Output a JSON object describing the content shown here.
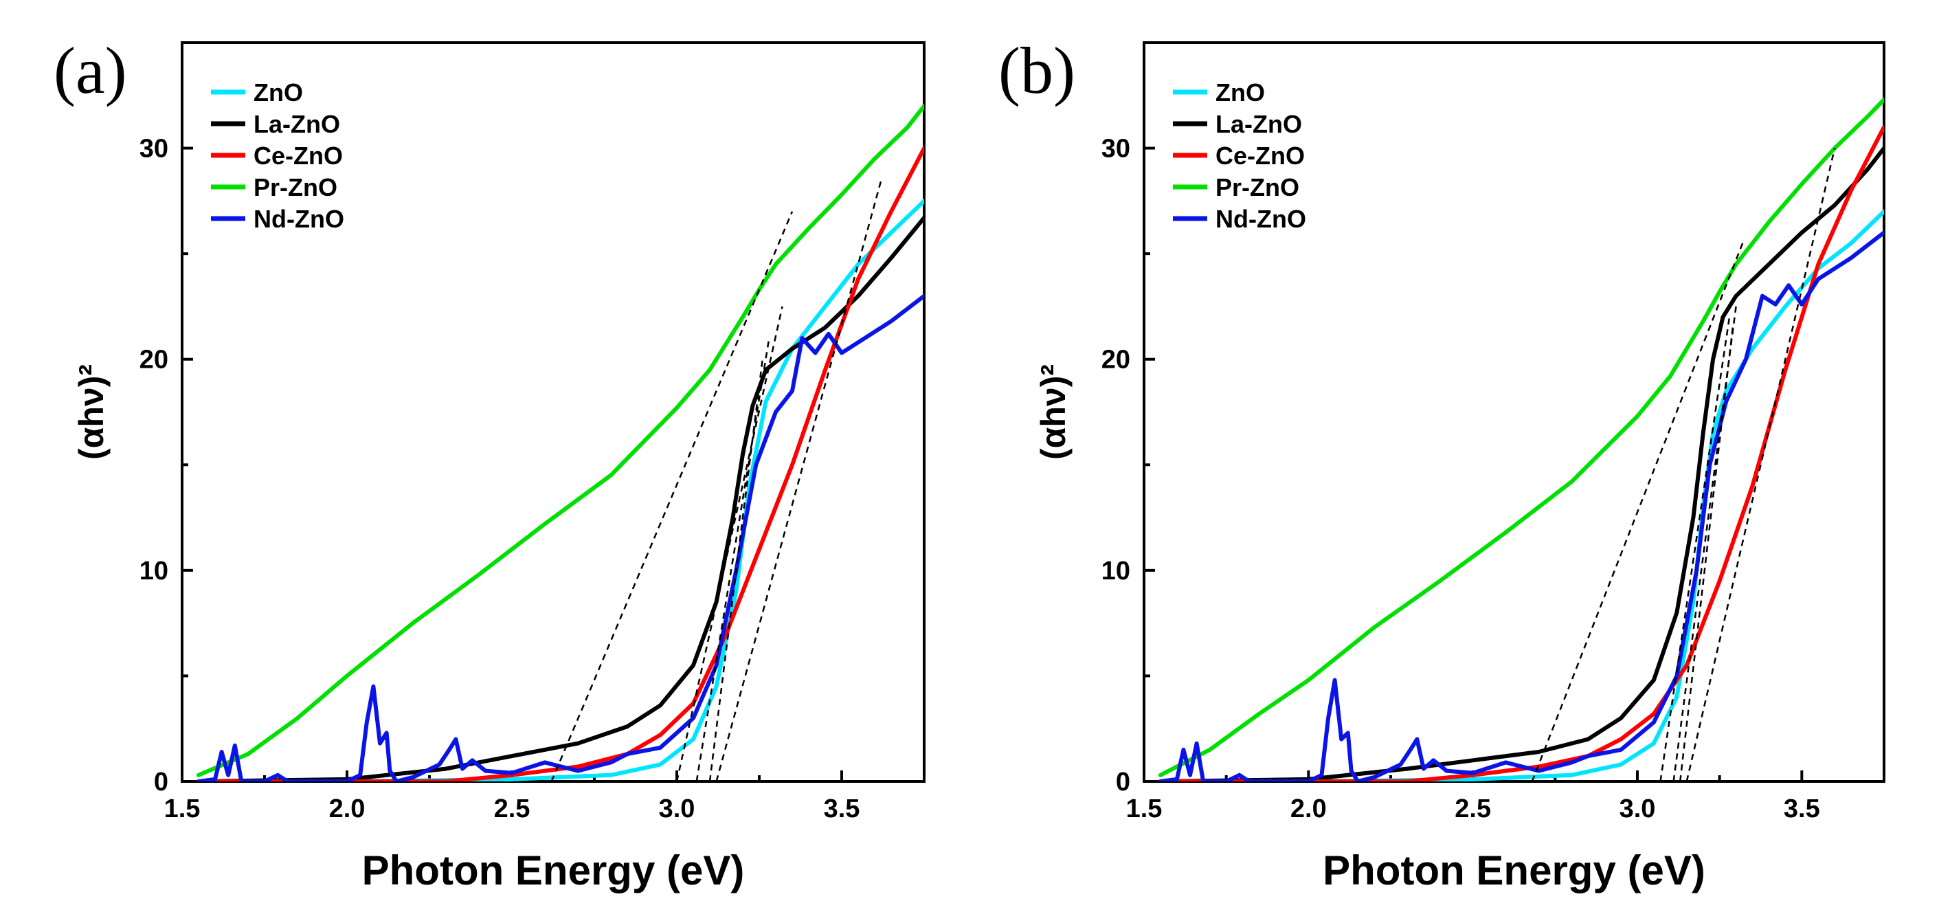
{
  "chart_data": [
    {
      "type": "line",
      "panel_label": "(a)",
      "xlabel": "Photon Energy (eV)",
      "ylabel": "(αhν)²",
      "xlim": [
        1.5,
        3.75
      ],
      "ylim": [
        0,
        35
      ],
      "xticks": [
        1.5,
        2.0,
        2.5,
        3.0,
        3.5
      ],
      "yticks": [
        0,
        10,
        20,
        30
      ],
      "x_tick_labels": [
        "1.5",
        "2.0",
        "2.5",
        "3.0",
        "3.5"
      ],
      "y_tick_labels": [
        "0",
        "10",
        "20",
        "30"
      ],
      "legend_position": "top-left",
      "series": [
        {
          "name": "ZnO",
          "color": "#00e5ff",
          "x": [
            1.55,
            2.0,
            2.5,
            2.8,
            2.95,
            3.05,
            3.12,
            3.18,
            3.22,
            3.27,
            3.35,
            3.45,
            3.55,
            3.65,
            3.75
          ],
          "y": [
            0.0,
            0.0,
            0.1,
            0.3,
            0.8,
            2.0,
            4.5,
            9.0,
            14.0,
            18.0,
            20.5,
            22.5,
            24.5,
            26.0,
            27.5
          ]
        },
        {
          "name": "La-ZnO",
          "color": "#000000",
          "x": [
            1.55,
            2.0,
            2.3,
            2.5,
            2.7,
            2.85,
            2.95,
            3.05,
            3.12,
            3.17,
            3.2,
            3.23,
            3.27,
            3.35,
            3.45,
            3.55,
            3.65,
            3.75
          ],
          "y": [
            0.0,
            0.1,
            0.6,
            1.2,
            1.8,
            2.6,
            3.6,
            5.5,
            8.5,
            12.5,
            15.5,
            17.8,
            19.5,
            20.5,
            21.5,
            23.0,
            24.8,
            26.7
          ]
        },
        {
          "name": "Ce-ZnO",
          "color": "#ff0000",
          "x": [
            1.55,
            2.3,
            2.5,
            2.7,
            2.85,
            2.95,
            3.05,
            3.15,
            3.25,
            3.35,
            3.45,
            3.55,
            3.65,
            3.75
          ],
          "y": [
            0.0,
            0.0,
            0.3,
            0.7,
            1.3,
            2.2,
            3.7,
            7.0,
            11.0,
            15.0,
            19.5,
            23.8,
            27.0,
            30.0
          ]
        },
        {
          "name": "Pr-ZnO",
          "color": "#00e000",
          "x": [
            1.55,
            1.7,
            1.85,
            2.0,
            2.2,
            2.4,
            2.6,
            2.8,
            3.0,
            3.1,
            3.2,
            3.25,
            3.3,
            3.4,
            3.5,
            3.6,
            3.7,
            3.75
          ],
          "y": [
            0.3,
            1.3,
            3.0,
            5.0,
            7.5,
            9.8,
            12.2,
            14.5,
            17.7,
            19.5,
            22.0,
            23.3,
            24.5,
            26.2,
            27.8,
            29.5,
            31.0,
            32.0
          ]
        },
        {
          "name": "Nd-ZnO",
          "color": "#0a14e6",
          "x": [
            1.55,
            1.6,
            1.62,
            1.64,
            1.66,
            1.68,
            1.75,
            1.79,
            1.82,
            2.0,
            2.04,
            2.06,
            2.08,
            2.1,
            2.12,
            2.13,
            2.15,
            2.2,
            2.28,
            2.31,
            2.33,
            2.35,
            2.38,
            2.42,
            2.5,
            2.6,
            2.7,
            2.8,
            2.85,
            2.95,
            3.05,
            3.12,
            3.18,
            3.24,
            3.3,
            3.35,
            3.38,
            3.42,
            3.46,
            3.5,
            3.55,
            3.65,
            3.75
          ],
          "y": [
            0.0,
            0.1,
            1.4,
            0.3,
            1.7,
            0.0,
            0.0,
            0.3,
            0.0,
            0.0,
            0.3,
            2.8,
            4.5,
            1.8,
            2.3,
            0.5,
            0.0,
            0.2,
            0.8,
            1.5,
            2.0,
            0.6,
            1.0,
            0.5,
            0.4,
            0.9,
            0.5,
            0.9,
            1.3,
            1.6,
            3.0,
            5.5,
            10.0,
            15.0,
            17.5,
            18.5,
            21.0,
            20.3,
            21.2,
            20.3,
            20.8,
            21.8,
            23.0
          ]
        }
      ],
      "fit_lines": [
        {
          "x": [
            2.62,
            3.35
          ],
          "y": [
            0.0,
            27.0
          ]
        },
        {
          "x": [
            3.0,
            3.32
          ],
          "y": [
            0.0,
            22.5
          ]
        },
        {
          "x": [
            3.06,
            3.28
          ],
          "y": [
            0.0,
            21.0
          ]
        },
        {
          "x": [
            3.1,
            3.26
          ],
          "y": [
            0.0,
            20.0
          ]
        },
        {
          "x": [
            3.12,
            3.62
          ],
          "y": [
            0.0,
            28.5
          ]
        }
      ]
    },
    {
      "type": "line",
      "panel_label": "(b)",
      "xlabel": "Photon Energy (eV)",
      "ylabel": "(αhν)²",
      "xlim": [
        1.5,
        3.75
      ],
      "ylim": [
        0,
        35
      ],
      "xticks": [
        1.5,
        2.0,
        2.5,
        3.0,
        3.5
      ],
      "yticks": [
        0,
        10,
        20,
        30
      ],
      "x_tick_labels": [
        "1.5",
        "2.0",
        "2.5",
        "3.0",
        "3.5"
      ],
      "y_tick_labels": [
        "0",
        "10",
        "20",
        "30"
      ],
      "legend_position": "top-left",
      "series": [
        {
          "name": "ZnO",
          "color": "#00e5ff",
          "x": [
            1.55,
            2.0,
            2.5,
            2.8,
            2.95,
            3.05,
            3.12,
            3.17,
            3.2,
            3.23,
            3.27,
            3.35,
            3.45,
            3.55,
            3.65,
            3.75
          ],
          "y": [
            0.0,
            0.0,
            0.1,
            0.3,
            0.8,
            1.8,
            4.0,
            8.5,
            13.0,
            16.5,
            18.5,
            20.5,
            22.5,
            24.3,
            25.5,
            27.0
          ]
        },
        {
          "name": "La-ZnO",
          "color": "#000000",
          "x": [
            1.55,
            2.0,
            2.3,
            2.5,
            2.7,
            2.85,
            2.95,
            3.05,
            3.12,
            3.17,
            3.2,
            3.23,
            3.26,
            3.3,
            3.4,
            3.5,
            3.6,
            3.7,
            3.75
          ],
          "y": [
            0.0,
            0.1,
            0.6,
            1.0,
            1.4,
            2.0,
            3.0,
            4.8,
            8.0,
            12.5,
            16.5,
            20.0,
            22.0,
            23.0,
            24.5,
            26.0,
            27.3,
            29.0,
            30.0
          ]
        },
        {
          "name": "Ce-ZnO",
          "color": "#ff0000",
          "x": [
            1.55,
            2.3,
            2.5,
            2.7,
            2.85,
            2.95,
            3.05,
            3.15,
            3.25,
            3.35,
            3.45,
            3.55,
            3.65,
            3.75
          ],
          "y": [
            0.0,
            0.0,
            0.3,
            0.7,
            1.2,
            2.0,
            3.2,
            5.5,
            9.5,
            14.0,
            19.5,
            24.5,
            28.0,
            31.0
          ]
        },
        {
          "name": "Pr-ZnO",
          "color": "#00e000",
          "x": [
            1.55,
            1.7,
            1.85,
            2.0,
            2.2,
            2.4,
            2.6,
            2.8,
            3.0,
            3.1,
            3.2,
            3.25,
            3.3,
            3.4,
            3.5,
            3.6,
            3.7,
            3.75
          ],
          "y": [
            0.3,
            1.5,
            3.2,
            4.8,
            7.3,
            9.5,
            11.8,
            14.2,
            17.3,
            19.2,
            21.8,
            23.2,
            24.5,
            26.5,
            28.3,
            30.0,
            31.5,
            32.3
          ]
        },
        {
          "name": "Nd-ZnO",
          "color": "#0a14e6",
          "x": [
            1.55,
            1.6,
            1.62,
            1.64,
            1.66,
            1.68,
            1.75,
            1.79,
            1.82,
            2.0,
            2.04,
            2.06,
            2.08,
            2.1,
            2.12,
            2.13,
            2.15,
            2.2,
            2.28,
            2.31,
            2.33,
            2.35,
            2.38,
            2.42,
            2.5,
            2.6,
            2.7,
            2.8,
            2.85,
            2.95,
            3.05,
            3.12,
            3.18,
            3.22,
            3.27,
            3.33,
            3.38,
            3.42,
            3.46,
            3.5,
            3.55,
            3.65,
            3.75
          ],
          "y": [
            0.0,
            0.1,
            1.5,
            0.3,
            1.8,
            0.0,
            0.0,
            0.3,
            0.0,
            0.0,
            0.3,
            3.0,
            4.8,
            2.0,
            2.3,
            0.5,
            0.0,
            0.2,
            0.8,
            1.5,
            2.0,
            0.6,
            1.0,
            0.5,
            0.4,
            0.9,
            0.5,
            0.9,
            1.2,
            1.5,
            2.8,
            5.0,
            10.0,
            15.0,
            18.0,
            20.0,
            23.0,
            22.6,
            23.5,
            22.6,
            23.8,
            24.8,
            26.0
          ]
        }
      ],
      "fit_lines": [
        {
          "x": [
            2.68,
            3.32
          ],
          "y": [
            0.0,
            25.5
          ]
        },
        {
          "x": [
            3.07,
            3.28
          ],
          "y": [
            0.0,
            22.0
          ]
        },
        {
          "x": [
            3.11,
            3.3
          ],
          "y": [
            0.0,
            22.5
          ]
        },
        {
          "x": [
            3.13,
            3.29
          ],
          "y": [
            0.0,
            21.5
          ]
        },
        {
          "x": [
            3.15,
            3.6
          ],
          "y": [
            0.0,
            30.0
          ]
        }
      ]
    }
  ]
}
